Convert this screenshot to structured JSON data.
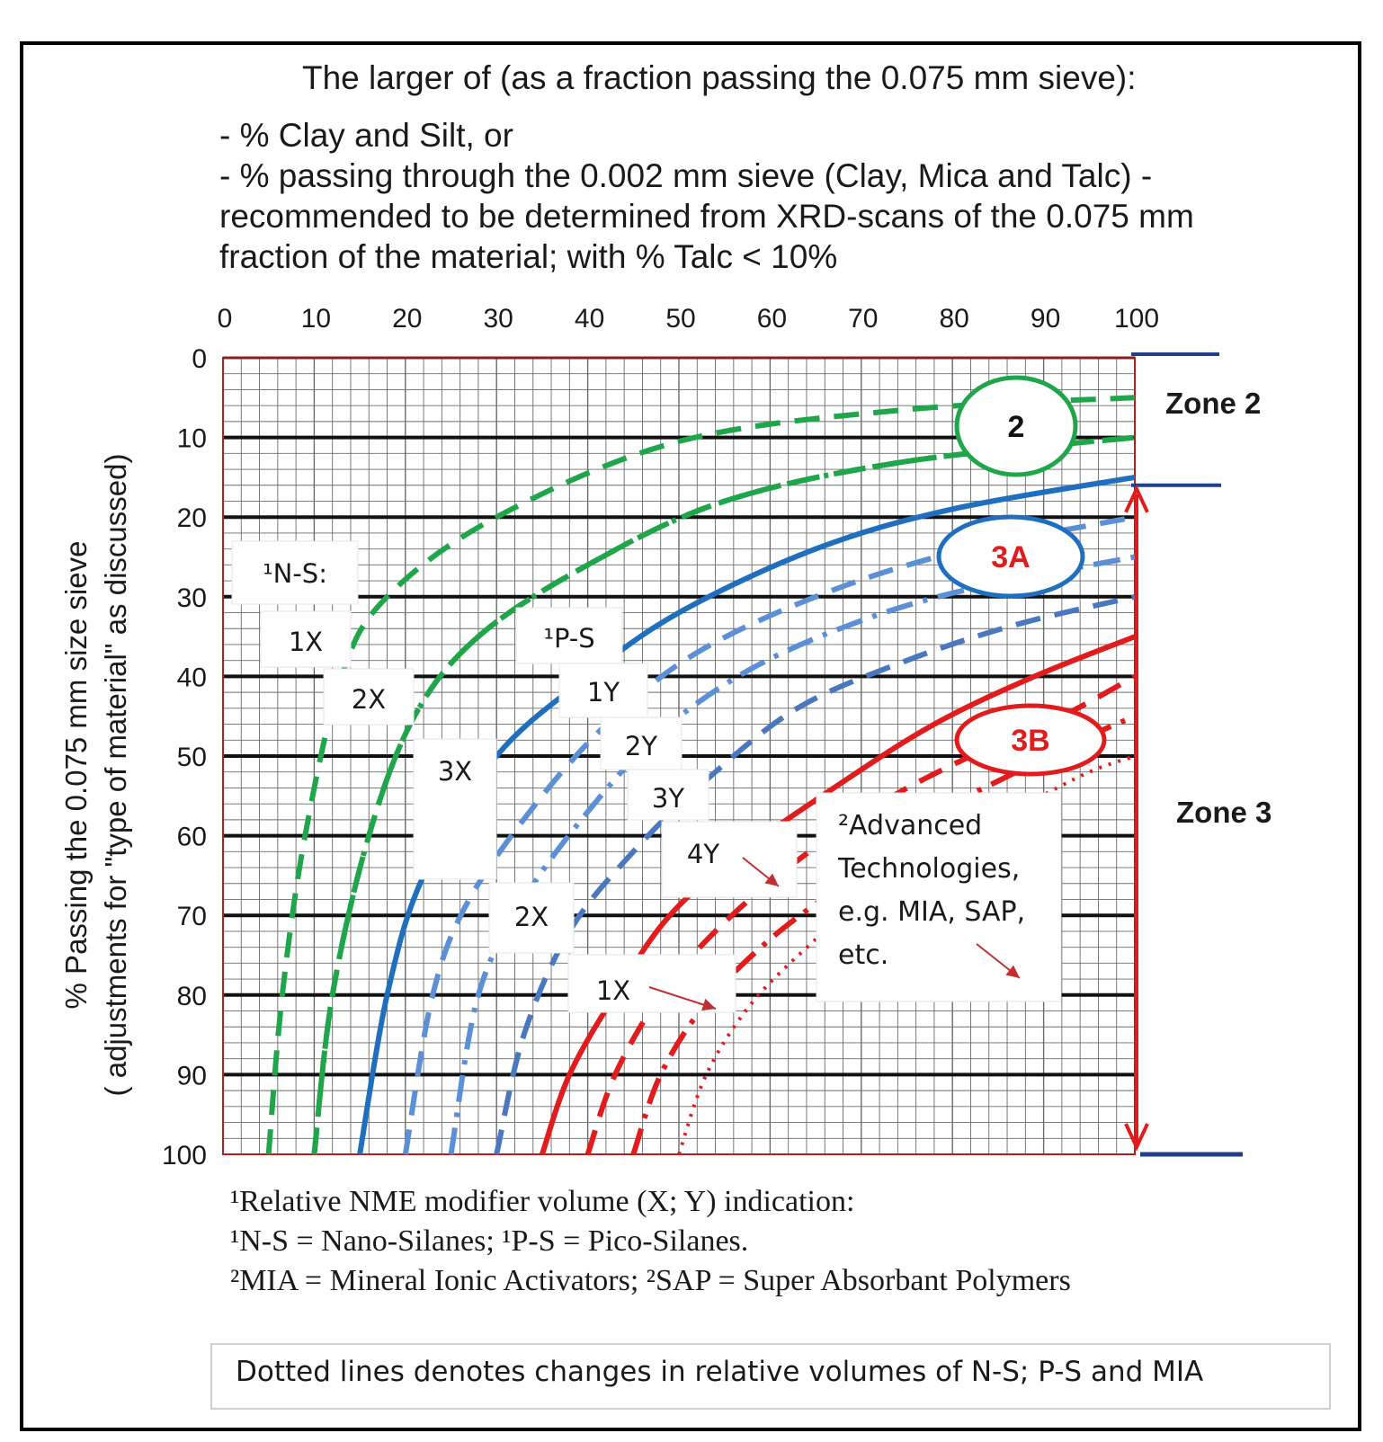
{
  "header": {
    "title": "The larger of (as a fraction passing the 0.075 mm sieve):",
    "lines": [
      "- % Clay and Silt, or",
      "- % passing through the 0.002 mm sieve (Clay, Mica and Talc) -",
      "recommended to be determined from XRD-scans of the 0.075 mm",
      "fraction of the material; with % Talc < 10%"
    ]
  },
  "chart_data": {
    "type": "line",
    "x_axis": {
      "position": "top",
      "range": [
        0,
        100
      ],
      "ticks": [
        "0",
        "10",
        "20",
        "30",
        "40",
        "50",
        "60",
        "70",
        "80",
        "90",
        "100"
      ],
      "minor_grid_step": 2
    },
    "y_axis": {
      "range": [
        0,
        100
      ],
      "inverted": true,
      "ticks": [
        "0",
        "10",
        "20",
        "30",
        "40",
        "50",
        "60",
        "70",
        "80",
        "90",
        "100"
      ],
      "label": "% Passing the 0.075 mm size sieve",
      "label2": "( adjustments for \"type of material\" as discussed)"
    },
    "grid": true,
    "series": [
      {
        "group": "2",
        "color": "#1fa64a",
        "style": "dashed",
        "points": [
          [
            5,
            100
          ],
          [
            6.5,
            80
          ],
          [
            9,
            60
          ],
          [
            13,
            40
          ],
          [
            18,
            30
          ],
          [
            30,
            20
          ],
          [
            50,
            10.5
          ],
          [
            75,
            6.5
          ],
          [
            100,
            5
          ]
        ]
      },
      {
        "group": "2",
        "color": "#1fa64a",
        "style": "dashed",
        "points": [
          [
            10,
            100
          ],
          [
            12,
            80
          ],
          [
            16,
            60
          ],
          [
            21,
            45
          ],
          [
            28,
            35
          ],
          [
            40,
            26
          ],
          [
            55,
            18
          ],
          [
            75,
            13
          ],
          [
            100,
            10
          ]
        ]
      },
      {
        "group": "2",
        "color": "#1fa64a",
        "style": "dashdot",
        "points": [
          [
            10,
            100
          ],
          [
            12,
            80
          ],
          [
            16,
            60
          ],
          [
            21,
            45
          ],
          [
            28,
            35
          ],
          [
            40,
            26
          ],
          [
            55,
            18
          ],
          [
            75,
            13
          ],
          [
            100,
            10
          ]
        ]
      },
      {
        "group": "3A",
        "color": "#1f6fbf",
        "style": "solid",
        "points": [
          [
            15,
            100
          ],
          [
            18,
            80
          ],
          [
            22,
            65
          ],
          [
            30,
            50
          ],
          [
            40,
            40
          ],
          [
            50,
            32
          ],
          [
            65,
            24
          ],
          [
            80,
            19
          ],
          [
            100,
            15
          ]
        ]
      },
      {
        "group": "3A",
        "color": "#5b8fd6",
        "style": "dashed",
        "points": [
          [
            20,
            100
          ],
          [
            23,
            80
          ],
          [
            27,
            68
          ],
          [
            35,
            55
          ],
          [
            43,
            45
          ],
          [
            52,
            37
          ],
          [
            65,
            30
          ],
          [
            80,
            24.5
          ],
          [
            100,
            20
          ]
        ]
      },
      {
        "group": "3A",
        "color": "#5b8fd6",
        "style": "dashdot",
        "points": [
          [
            25,
            100
          ],
          [
            28,
            80
          ],
          [
            33,
            68
          ],
          [
            40,
            57
          ],
          [
            48,
            47
          ],
          [
            58,
            39
          ],
          [
            70,
            33
          ],
          [
            82,
            29
          ],
          [
            100,
            25
          ]
        ]
      },
      {
        "group": "3A",
        "color": "#4a78c0",
        "style": "dashed",
        "points": [
          [
            30,
            100
          ],
          [
            33,
            85
          ],
          [
            38,
            72
          ],
          [
            45,
            62
          ],
          [
            53,
            53
          ],
          [
            63,
            44
          ],
          [
            75,
            38
          ],
          [
            87,
            33.5
          ],
          [
            100,
            30
          ]
        ]
      },
      {
        "group": "3B",
        "color": "#e21c1c",
        "style": "solid",
        "points": [
          [
            35,
            100
          ],
          [
            38,
            90
          ],
          [
            43,
            80
          ],
          [
            49,
            70
          ],
          [
            57,
            62
          ],
          [
            67,
            54
          ],
          [
            78,
            46
          ],
          [
            89,
            40
          ],
          [
            100,
            35
          ]
        ]
      },
      {
        "group": "3B",
        "color": "#e21c1c",
        "style": "dashed",
        "points": [
          [
            40,
            100
          ],
          [
            43,
            90
          ],
          [
            48,
            80
          ],
          [
            54,
            72
          ],
          [
            62,
            64
          ],
          [
            72,
            56
          ],
          [
            82,
            50
          ],
          [
            92,
            45
          ],
          [
            100,
            40
          ]
        ]
      },
      {
        "group": "3B",
        "color": "#e21c1c",
        "style": "dashdot",
        "points": [
          [
            45,
            100
          ],
          [
            48,
            90
          ],
          [
            53,
            81
          ],
          [
            60,
            73
          ],
          [
            68,
            66
          ],
          [
            77,
            58
          ],
          [
            87,
            52
          ],
          [
            94,
            48
          ],
          [
            100,
            45
          ]
        ]
      },
      {
        "group": "3B",
        "color": "#e21c1c",
        "style": "dotted",
        "points": [
          [
            50,
            100
          ],
          [
            53,
            90
          ],
          [
            58,
            81
          ],
          [
            65,
            73
          ],
          [
            72,
            66
          ],
          [
            80,
            60
          ],
          [
            88,
            56
          ],
          [
            95,
            52
          ],
          [
            100,
            50
          ]
        ]
      }
    ],
    "zone_labels": [
      "Zone 2",
      "Zone 3"
    ],
    "ellipse_labels": [
      {
        "text": "2",
        "color": "#1fa64a"
      },
      {
        "text": "3A",
        "color": "#1f6fbf"
      },
      {
        "text": "3B",
        "color": "#e21c1c"
      }
    ],
    "box_labels": {
      "ns": "¹N-S:",
      "ps": "¹P-S",
      "x1": "1X",
      "x2": "2X",
      "x3": "3X",
      "x2b": "2X",
      "x1b": "1X",
      "y1": "1Y",
      "y2": "2Y",
      "y3": "3Y",
      "y4": "4Y",
      "adv": [
        "²Advanced",
        "Technologies,",
        "e.g. MIA, SAP,",
        "etc."
      ]
    }
  },
  "footnotes": [
    "¹Relative NME modifier  volume  (X; Y) indication:",
    "¹N-S = Nano-Silanes; ¹P-S = Pico-Silanes.",
    "²MIA = Mineral Ionic Activators; ²SAP = Super Absorbant Polymers"
  ],
  "note": "Dotted lines denotes changes in relative volumes of N-S; P-S and MIA"
}
